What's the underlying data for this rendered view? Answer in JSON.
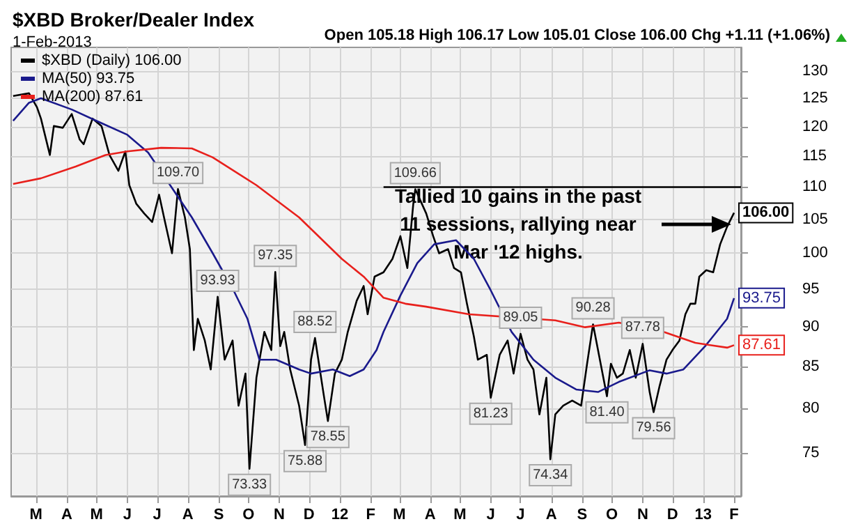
{
  "chart_data": {
    "type": "line",
    "title": "$XBD Broker/Dealer Index",
    "subtitle": "1-Feb-2013",
    "annotations": [
      "Open 105.18 High 106.17 Low 105.01 Close 106.00 Chg +1.11 (+1.06%)",
      "Tallied 10 gains in the past\n11 sessions, rallying near\nMar '12 highs.",
      {
        "text": "109.70",
        "x": "2011-07-22",
        "y": 109.7
      },
      {
        "text": "93.93",
        "x": "2011-08-31",
        "y": 93.93
      },
      {
        "text": "73.33",
        "x": "2011-10-02",
        "y": 73.33
      },
      {
        "text": "97.35",
        "x": "2011-10-28",
        "y": 97.35
      },
      {
        "text": "75.88",
        "x": "2011-11-27",
        "y": 75.88
      },
      {
        "text": "88.52",
        "x": "2011-12-07",
        "y": 88.52
      },
      {
        "text": "78.55",
        "x": "2011-12-20",
        "y": 78.55
      },
      {
        "text": "109.66",
        "x": "2012-03-17",
        "y": 109.66
      },
      {
        "text": "81.23",
        "x": "2012-06-01",
        "y": 81.23
      },
      {
        "text": "89.05",
        "x": "2012-07-01",
        "y": 89.05
      },
      {
        "text": "74.34",
        "x": "2012-07-31",
        "y": 74.34
      },
      {
        "text": "90.28",
        "x": "2012-09-12",
        "y": 90.28
      },
      {
        "text": "81.40",
        "x": "2012-09-26",
        "y": 81.4
      },
      {
        "text": "87.78",
        "x": "2012-11-01",
        "y": 87.78
      },
      {
        "text": "79.56",
        "x": "2012-11-12",
        "y": 79.56
      }
    ],
    "series": [
      {
        "name": "$XBD (Daily) 106.00",
        "color": "#000000",
        "x": [
          "2011-02-06",
          "2011-02-22",
          "2011-03-02",
          "2011-03-06",
          "2011-03-15",
          "2011-03-19",
          "2011-03-28",
          "2011-04-06",
          "2011-04-14",
          "2011-04-18",
          "2011-04-27",
          "2011-05-06",
          "2011-05-14",
          "2011-05-23",
          "2011-05-30",
          "2011-06-03",
          "2011-06-10",
          "2011-06-18",
          "2011-06-26",
          "2011-07-03",
          "2011-07-09",
          "2011-07-16",
          "2011-07-22",
          "2011-07-29",
          "2011-08-03",
          "2011-08-07",
          "2011-08-11",
          "2011-08-18",
          "2011-08-24",
          "2011-08-31",
          "2011-09-07",
          "2011-09-15",
          "2011-09-21",
          "2011-09-28",
          "2011-10-02",
          "2011-10-09",
          "2011-10-17",
          "2011-10-24",
          "2011-10-28",
          "2011-11-02",
          "2011-11-06",
          "2011-11-12",
          "2011-11-21",
          "2011-11-27",
          "2011-12-03",
          "2011-12-07",
          "2011-12-16",
          "2011-12-20",
          "2011-12-27",
          "2012-01-03",
          "2012-01-09",
          "2012-01-18",
          "2012-01-25",
          "2012-01-29",
          "2012-02-05",
          "2012-02-14",
          "2012-02-23",
          "2012-03-02",
          "2012-03-09",
          "2012-03-15",
          "2012-03-17",
          "2012-03-28",
          "2012-04-04",
          "2012-04-10",
          "2012-04-19",
          "2012-04-25",
          "2012-05-02",
          "2012-05-08",
          "2012-05-15",
          "2012-05-19",
          "2012-05-28",
          "2012-06-01",
          "2012-06-10",
          "2012-06-18",
          "2012-06-24",
          "2012-07-01",
          "2012-07-08",
          "2012-07-14",
          "2012-07-20",
          "2012-07-27",
          "2012-07-31",
          "2012-08-05",
          "2012-08-13",
          "2012-08-22",
          "2012-08-31",
          "2012-09-06",
          "2012-09-12",
          "2012-09-17",
          "2012-09-26",
          "2012-09-30",
          "2012-10-06",
          "2012-10-12",
          "2012-10-19",
          "2012-10-25",
          "2012-11-01",
          "2012-11-08",
          "2012-11-12",
          "2012-11-18",
          "2012-11-25",
          "2012-12-01",
          "2012-12-08",
          "2012-12-14",
          "2012-12-19",
          "2012-12-24",
          "2012-12-28",
          "2013-01-04",
          "2013-01-11",
          "2013-01-18",
          "2013-01-25",
          "2013-02-01"
        ],
        "values": [
          125.4,
          125.9,
          123.4,
          121.4,
          115.2,
          120.1,
          119.8,
          122.2,
          117.8,
          117.0,
          121.4,
          120.1,
          115.2,
          112.6,
          115.8,
          110.3,
          107.4,
          105.9,
          104.6,
          108.8,
          104.6,
          100.0,
          109.7,
          105.3,
          100.6,
          87.0,
          91.0,
          88.2,
          84.6,
          93.93,
          85.8,
          88.2,
          80.3,
          84.1,
          73.33,
          83.6,
          89.3,
          87.0,
          97.35,
          87.5,
          89.3,
          84.6,
          80.3,
          75.88,
          85.8,
          88.52,
          81.4,
          78.55,
          84.1,
          85.8,
          89.3,
          93.4,
          95.4,
          91.6,
          96.7,
          97.3,
          99.2,
          102.5,
          97.9,
          107.4,
          109.66,
          105.9,
          102.5,
          100.0,
          100.6,
          97.9,
          97.3,
          93.0,
          88.7,
          85.8,
          86.4,
          81.23,
          86.4,
          88.2,
          84.1,
          89.05,
          85.8,
          84.6,
          79.3,
          83.6,
          74.34,
          79.3,
          80.3,
          80.9,
          80.3,
          85.3,
          90.28,
          87.0,
          81.4,
          85.3,
          83.6,
          84.1,
          87.0,
          83.6,
          87.78,
          81.9,
          79.56,
          82.6,
          85.8,
          87.0,
          88.2,
          91.6,
          93.0,
          93.0,
          96.7,
          97.6,
          97.3,
          101.3,
          103.9,
          106.0
        ],
        "value_labels": [
          null,
          null,
          null,
          null,
          null,
          null,
          null,
          null,
          null,
          null,
          null,
          null,
          null,
          null,
          null,
          null,
          null,
          null,
          null,
          null,
          null,
          null,
          null,
          null,
          null,
          null,
          null,
          null,
          null,
          null,
          null,
          null,
          null,
          null,
          null,
          null,
          null,
          null,
          null,
          null,
          null,
          null,
          null,
          null,
          null,
          null,
          null,
          null,
          null,
          null,
          null,
          null,
          null,
          null,
          null,
          null,
          null,
          null,
          null,
          null,
          null,
          null,
          null,
          null,
          null,
          null,
          null,
          null,
          null,
          null,
          null,
          null,
          null,
          null,
          null,
          null,
          null,
          null,
          null,
          null,
          null,
          null,
          null,
          null,
          null,
          null,
          null,
          null,
          null,
          null,
          null,
          null,
          null,
          null,
          null,
          null,
          null,
          null,
          null,
          null,
          null,
          null,
          null,
          null,
          null,
          null,
          null,
          null,
          null,
          "106.00"
        ]
      },
      {
        "name": "MA(50) 93.75",
        "color": "#1a1a8c",
        "x": [
          "2011-02-06",
          "2011-02-22",
          "2011-03-06",
          "2011-04-06",
          "2011-05-01",
          "2011-06-01",
          "2011-06-22",
          "2011-08-05",
          "2011-08-26",
          "2011-09-16",
          "2011-09-30",
          "2011-10-12",
          "2011-10-29",
          "2011-11-21",
          "2011-12-03",
          "2011-12-25",
          "2012-01-11",
          "2012-01-25",
          "2012-02-07",
          "2012-02-14",
          "2012-03-02",
          "2012-03-19",
          "2012-04-05",
          "2012-04-27",
          "2012-05-15",
          "2012-06-01",
          "2012-06-22",
          "2012-07-14",
          "2012-08-05",
          "2012-08-26",
          "2012-09-17",
          "2012-10-08",
          "2012-11-08",
          "2012-11-25",
          "2012-12-12",
          "2013-01-03",
          "2013-01-25",
          "2013-02-01"
        ],
        "values": [
          121.0,
          124.2,
          125.0,
          123.0,
          121.0,
          118.6,
          115.6,
          105.3,
          100.0,
          94.8,
          91.0,
          85.8,
          85.8,
          84.6,
          84.1,
          84.6,
          83.8,
          84.6,
          87.0,
          89.3,
          94.1,
          98.6,
          101.3,
          101.9,
          99.2,
          94.8,
          89.3,
          85.8,
          83.6,
          82.2,
          81.9,
          83.1,
          84.5,
          84.1,
          84.6,
          87.5,
          91.0,
          93.75
        ],
        "value_labels": [
          null,
          null,
          null,
          null,
          null,
          null,
          null,
          null,
          null,
          null,
          null,
          null,
          null,
          null,
          null,
          null,
          null,
          null,
          null,
          null,
          null,
          null,
          null,
          null,
          null,
          null,
          null,
          null,
          null,
          null,
          null,
          null,
          null,
          null,
          null,
          null,
          null,
          "93.75"
        ]
      },
      {
        "name": "MA(200) 87.61",
        "color": "#e8201c",
        "x": [
          "2011-02-06",
          "2011-03-06",
          "2011-04-10",
          "2011-05-10",
          "2011-06-01",
          "2011-07-05",
          "2011-08-05",
          "2011-08-26",
          "2011-10-09",
          "2011-11-21",
          "2012-01-03",
          "2012-01-25",
          "2012-02-14",
          "2012-03-07",
          "2012-03-28",
          "2012-05-10",
          "2012-08-05",
          "2012-09-04",
          "2012-10-08",
          "2012-11-22",
          "2012-12-24",
          "2013-01-25",
          "2013-02-01"
        ],
        "values": [
          110.5,
          111.4,
          113.3,
          115.2,
          115.8,
          116.4,
          116.3,
          114.8,
          110.3,
          105.3,
          99.2,
          96.7,
          93.8,
          93.0,
          92.6,
          91.6,
          90.8,
          89.9,
          90.5,
          89.3,
          87.9,
          87.3,
          87.61
        ],
        "value_labels": [
          null,
          null,
          null,
          null,
          null,
          null,
          null,
          null,
          null,
          null,
          null,
          null,
          null,
          null,
          null,
          null,
          null,
          null,
          null,
          null,
          null,
          null,
          "87.61"
        ]
      },
      {
        "color": "#000000",
        "x": [
          "2012-02-14",
          "2013-02-08"
        ],
        "values": [
          110,
          110
        ]
      }
    ],
    "xlim": [
      "2011-02-04",
      "2013-02-08"
    ],
    "xticks": [
      {
        "value": "2011-03-01",
        "label": "M"
      },
      {
        "value": "2011-04-01",
        "label": "A"
      },
      {
        "value": "2011-05-01",
        "label": "M"
      },
      {
        "value": "2011-06-01",
        "label": "J"
      },
      {
        "value": "2011-07-01",
        "label": "J"
      },
      {
        "value": "2011-08-01",
        "label": "A"
      },
      {
        "value": "2011-09-01",
        "label": "S"
      },
      {
        "value": "2011-10-01",
        "label": "O"
      },
      {
        "value": "2011-11-01",
        "label": "N"
      },
      {
        "value": "2011-12-01",
        "label": "D"
      },
      {
        "value": "2012-01-01",
        "label": "12"
      },
      {
        "value": "2012-02-01",
        "label": "F"
      },
      {
        "value": "2012-03-01",
        "label": "M"
      },
      {
        "value": "2012-04-01",
        "label": "A"
      },
      {
        "value": "2012-05-01",
        "label": "M"
      },
      {
        "value": "2012-06-01",
        "label": "J"
      },
      {
        "value": "2012-07-01",
        "label": "J"
      },
      {
        "value": "2012-08-01",
        "label": "A"
      },
      {
        "value": "2012-09-01",
        "label": "S"
      },
      {
        "value": "2012-10-01",
        "label": "O"
      },
      {
        "value": "2012-11-01",
        "label": "N"
      },
      {
        "value": "2012-12-01",
        "label": "D"
      },
      {
        "value": "2013-01-01",
        "label": "13"
      },
      {
        "value": "2013-02-01",
        "label": "F"
      }
    ],
    "ylim": [
      70.5,
      134.5
    ],
    "yticks": [
      75,
      80,
      85,
      90,
      95,
      100,
      105,
      110,
      115,
      120,
      125,
      130
    ],
    "log": "y",
    "grid": true,
    "legend": "top left"
  }
}
